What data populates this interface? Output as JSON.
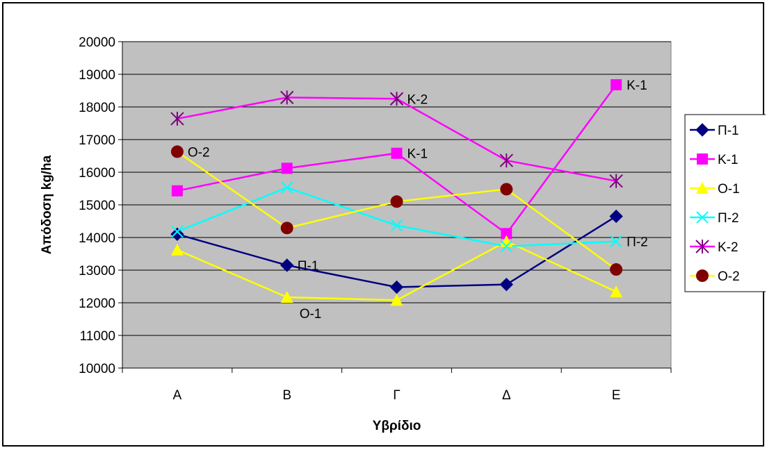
{
  "chart_data": {
    "type": "line",
    "title": "",
    "xlabel": "Υβρίδιο",
    "ylabel": "Απόδοση kg/ha",
    "categories": [
      "A",
      "B",
      "Γ",
      "Δ",
      "E"
    ],
    "ylim": [
      10000,
      20000
    ],
    "yticks": [
      "10000",
      "11000",
      "12000",
      "13000",
      "14000",
      "15000",
      "16000",
      "17000",
      "18000",
      "19000",
      "20000"
    ],
    "grid": true,
    "plot_background": "#c0c0c0",
    "legend_position": "right",
    "series": [
      {
        "name": "Π-1",
        "values": [
          14100,
          13150,
          12480,
          12560,
          14650
        ],
        "color": "#000080",
        "marker": "diamond"
      },
      {
        "name": "Κ-1",
        "values": [
          15430,
          16120,
          16580,
          14120,
          18680
        ],
        "color": "#ff00ff",
        "marker": "square"
      },
      {
        "name": "Ο-1",
        "values": [
          13620,
          12170,
          12080,
          13880,
          12340
        ],
        "color": "#ffff00",
        "marker": "triangle"
      },
      {
        "name": "Π-2",
        "values": [
          14180,
          15530,
          14370,
          13730,
          13880
        ],
        "color": "#00ffff",
        "marker": "x"
      },
      {
        "name": "Κ-2",
        "values": [
          17640,
          18290,
          18250,
          16360,
          15730
        ],
        "color": "#ff00ff",
        "marker": "star",
        "marker_color": "#800080"
      },
      {
        "name": "Ο-2",
        "values": [
          16630,
          14290,
          15100,
          15480,
          13020
        ],
        "color": "#ffff00",
        "marker": "circle",
        "marker_color": "#800000"
      }
    ],
    "annotations": [
      {
        "text": "Π-1",
        "series": 0,
        "index": 1
      },
      {
        "text": "Κ-1",
        "series": 1,
        "index": 2
      },
      {
        "text": "Κ-1",
        "series": 1,
        "index": 4
      },
      {
        "text": "Ο-1",
        "series": 2,
        "index": 1
      },
      {
        "text": "Π-2",
        "series": 3,
        "index": 4
      },
      {
        "text": "Κ-2",
        "series": 4,
        "index": 2
      },
      {
        "text": "Ο-2",
        "series": 5,
        "index": 0
      }
    ]
  }
}
